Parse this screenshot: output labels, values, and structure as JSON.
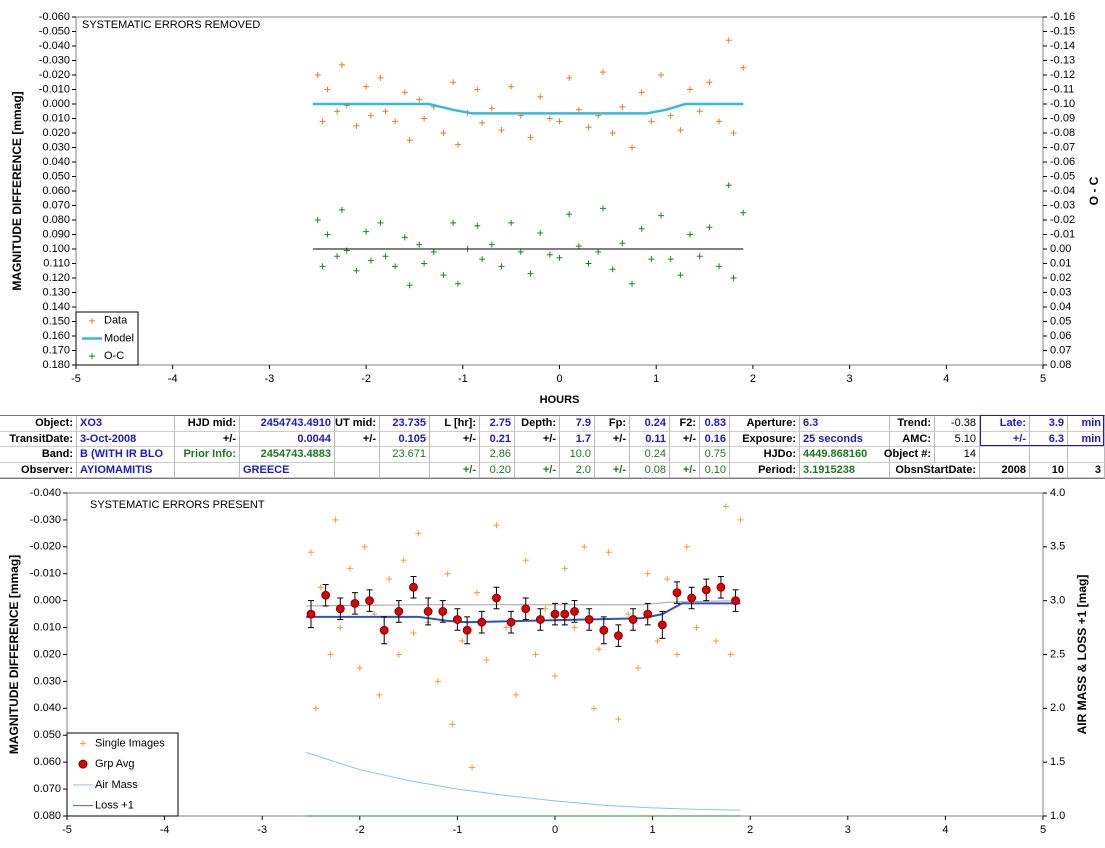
{
  "chart_data": [
    {
      "type": "scatter",
      "title": "SYSTEMATIC ERRORS REMOVED",
      "xlabel": "HOURS",
      "ylabel": "MAGNITUDE DIFFERENCE [mmag]",
      "y2label": "O - C",
      "xlim": [
        -5,
        5
      ],
      "xticks": [
        -5,
        -4,
        -3,
        -2,
        -1,
        0,
        1,
        2,
        3,
        4,
        5
      ],
      "ylim": [
        0.18,
        -0.06
      ],
      "yticks": [
        {
          "value": -0.06,
          "label": "-0.060"
        },
        {
          "value": -0.05,
          "label": "-0.050"
        },
        {
          "value": -0.04,
          "label": "-0.040"
        },
        {
          "value": -0.03,
          "label": "-0.030"
        },
        {
          "value": -0.02,
          "label": "-0.020"
        },
        {
          "value": -0.01,
          "label": "-0.010"
        },
        {
          "value": 0,
          "label": "0.000"
        },
        {
          "value": 0.01,
          "label": "0.010"
        },
        {
          "value": 0.02,
          "label": "0.020"
        },
        {
          "value": 0.03,
          "label": "0.030"
        },
        {
          "value": 0.04,
          "label": "0.040"
        },
        {
          "value": 0.05,
          "label": "0.050"
        },
        {
          "value": 0.06,
          "label": "0.060"
        },
        {
          "value": 0.07,
          "label": "0.070"
        },
        {
          "value": 0.08,
          "label": "0.080"
        },
        {
          "value": 0.09,
          "label": "0.090"
        },
        {
          "value": 0.1,
          "label": "0.100"
        },
        {
          "value": 0.11,
          "label": "0.110"
        },
        {
          "value": 0.12,
          "label": "0.120"
        },
        {
          "value": 0.13,
          "label": "0.130"
        },
        {
          "value": 0.14,
          "label": "0.140"
        },
        {
          "value": 0.15,
          "label": "0.150"
        },
        {
          "value": 0.16,
          "label": "0.160"
        },
        {
          "value": 0.17,
          "label": "0.170"
        },
        {
          "value": 0.18,
          "label": "0.180"
        }
      ],
      "y2lim": [
        0.08,
        -0.16
      ],
      "y2ticks": [
        -0.16,
        -0.15,
        -0.14,
        -0.13,
        -0.12,
        -0.11,
        {
          "value": -0.1,
          "label": "-0.10"
        },
        -0.09,
        -0.08,
        -0.07,
        -0.06,
        -0.05,
        -0.04,
        -0.03,
        -0.02,
        -0.01,
        {
          "value": 0,
          "label": "0.00"
        },
        0.01,
        0.02,
        0.03,
        0.04,
        0.05,
        0.06,
        0.07,
        0.08
      ],
      "legend": "lower left",
      "series": [
        {
          "name": "Data",
          "color": "#ec7c22",
          "marker": "plus",
          "x": [
            -2.5,
            -2.45,
            -2.4,
            -2.3,
            -2.25,
            -2.2,
            -2.1,
            -2.0,
            -1.95,
            -1.85,
            -1.8,
            -1.7,
            -1.6,
            -1.55,
            -1.45,
            -1.4,
            -1.3,
            -1.2,
            -1.1,
            -1.05,
            -0.95,
            -0.85,
            -0.8,
            -0.7,
            -0.6,
            -0.5,
            -0.4,
            -0.3,
            -0.2,
            -0.1,
            0.0,
            0.1,
            0.2,
            0.3,
            0.4,
            0.45,
            0.55,
            0.65,
            0.75,
            0.85,
            0.95,
            1.05,
            1.15,
            1.25,
            1.35,
            1.45,
            1.55,
            1.65,
            1.75,
            1.8,
            1.9
          ],
          "values": [
            -0.02,
            0.012,
            -0.01,
            0.005,
            -0.027,
            0.001,
            0.015,
            -0.012,
            0.008,
            -0.018,
            0.005,
            0.012,
            -0.008,
            0.025,
            -0.003,
            0.01,
            0.002,
            0.02,
            -0.015,
            0.028,
            0.006,
            -0.01,
            0.013,
            0.003,
            0.018,
            -0.012,
            0.008,
            0.023,
            -0.005,
            0.01,
            0.012,
            -0.018,
            0.004,
            0.016,
            0.008,
            -0.022,
            0.02,
            0.002,
            0.03,
            -0.008,
            0.012,
            -0.02,
            0.008,
            0.018,
            -0.01,
            0.005,
            -0.015,
            0.012,
            -0.044,
            0.02,
            -0.025
          ]
        },
        {
          "name": "Model",
          "color": "#33bbdd",
          "marker": "line",
          "width": 2.5,
          "x": [
            -2.55,
            -1.35,
            -1.1,
            -0.9,
            0.9,
            1.1,
            1.3,
            1.9
          ],
          "values": [
            0,
            0,
            0.004,
            0.0065,
            0.0065,
            0.004,
            0,
            0
          ]
        },
        {
          "name": "O-C",
          "color": "#1a8a1a",
          "marker": "plus",
          "axis": "y2",
          "x": [
            -2.5,
            -2.45,
            -2.4,
            -2.3,
            -2.25,
            -2.2,
            -2.1,
            -2.0,
            -1.95,
            -1.85,
            -1.8,
            -1.7,
            -1.6,
            -1.55,
            -1.45,
            -1.4,
            -1.3,
            -1.2,
            -1.1,
            -1.05,
            -0.95,
            -0.85,
            -0.8,
            -0.7,
            -0.6,
            -0.5,
            -0.4,
            -0.3,
            -0.2,
            -0.1,
            0.0,
            0.1,
            0.2,
            0.3,
            0.4,
            0.45,
            0.55,
            0.65,
            0.75,
            0.85,
            0.95,
            1.05,
            1.15,
            1.25,
            1.35,
            1.45,
            1.55,
            1.65,
            1.75,
            1.8,
            1.9
          ],
          "values": [
            -0.02,
            0.012,
            -0.01,
            0.005,
            -0.027,
            0.001,
            0.015,
            -0.012,
            0.008,
            -0.018,
            0.005,
            0.012,
            -0.008,
            0.025,
            -0.003,
            0.01,
            0.002,
            0.018,
            -0.018,
            0.024,
            0.0,
            -0.016,
            0.007,
            -0.003,
            0.012,
            -0.018,
            0.002,
            0.017,
            -0.011,
            0.004,
            0.006,
            -0.024,
            -0.002,
            0.01,
            0.002,
            -0.028,
            0.014,
            -0.004,
            0.024,
            -0.014,
            0.007,
            -0.023,
            0.007,
            0.018,
            -0.01,
            0.005,
            -0.015,
            0.012,
            -0.044,
            0.02,
            -0.025
          ]
        },
        {
          "color": "#000000",
          "marker": "line",
          "axis": "y2",
          "width": 1,
          "x": [
            -2.55,
            1.9
          ],
          "values": [
            0,
            0
          ]
        }
      ]
    },
    {
      "type": "scatter",
      "title": "SYSTEMATIC ERRORS PRESENT",
      "ylabel": "MAGNITUDE DIFFERENCE [mmag]",
      "y2label": "AIR MASS & LOSS +1 [mag]",
      "xlim": [
        -5,
        5
      ],
      "xticks": [
        -5,
        -4,
        -3,
        -2,
        -1,
        0,
        1,
        2,
        3,
        4,
        5
      ],
      "ylim": [
        0.08,
        -0.04
      ],
      "yticks": [
        {
          "value": -0.04,
          "label": "-0.040"
        },
        {
          "value": -0.03,
          "label": "-0.030"
        },
        {
          "value": -0.02,
          "label": "-0.020"
        },
        {
          "value": -0.01,
          "label": "-0.010"
        },
        {
          "value": 0,
          "label": "0.000"
        },
        {
          "value": 0.01,
          "label": "0.010"
        },
        {
          "value": 0.02,
          "label": "0.020"
        },
        {
          "value": 0.03,
          "label": "0.030"
        },
        {
          "value": 0.04,
          "label": "0.040"
        },
        {
          "value": 0.05,
          "label": "0.050"
        },
        {
          "value": 0.06,
          "label": "0.060"
        },
        {
          "value": 0.07,
          "label": "0.070"
        },
        {
          "value": 0.08,
          "label": "0.080"
        }
      ],
      "y2lim": [
        1.0,
        4.0
      ],
      "y2ticks": [
        {
          "value": 1,
          "label": "1.0"
        },
        1.5,
        {
          "value": 2,
          "label": "2.0"
        },
        2.5,
        {
          "value": 3,
          "label": "3.0"
        },
        3.5,
        {
          "value": 4,
          "label": "4.0"
        }
      ],
      "legend": "lower left",
      "series": [
        {
          "name": "Single Images",
          "color": "#f0a030",
          "marker": "plus",
          "x": [
            -2.5,
            -2.45,
            -2.4,
            -2.3,
            -2.25,
            -2.2,
            -2.1,
            -2.0,
            -1.95,
            -1.85,
            -1.8,
            -1.7,
            -1.6,
            -1.55,
            -1.45,
            -1.4,
            -1.3,
            -1.2,
            -1.1,
            -1.05,
            -0.95,
            -0.85,
            -0.8,
            -0.7,
            -0.6,
            -0.5,
            -0.4,
            -0.3,
            -0.2,
            -0.1,
            0.0,
            0.1,
            0.2,
            0.3,
            0.4,
            0.45,
            0.55,
            0.65,
            0.75,
            0.85,
            0.95,
            1.05,
            1.15,
            1.25,
            1.35,
            1.45,
            1.55,
            1.65,
            1.75,
            1.8,
            1.9
          ],
          "values": [
            -0.018,
            0.04,
            -0.005,
            0.02,
            -0.03,
            0.01,
            -0.012,
            0.025,
            -0.02,
            0.005,
            0.035,
            -0.008,
            0.02,
            -0.015,
            0.012,
            -0.025,
            0.008,
            0.03,
            -0.01,
            0.046,
            0.015,
            0.062,
            -0.003,
            0.022,
            -0.028,
            0.01,
            0.035,
            -0.015,
            0.02,
            0.003,
            0.028,
            -0.012,
            0.01,
            -0.02,
            0.04,
            0.018,
            -0.018,
            0.044,
            0.005,
            0.025,
            -0.01,
            0.015,
            -0.008,
            0.02,
            -0.02,
            0.01,
            -0.003,
            0.015,
            -0.035,
            0.02,
            -0.03
          ]
        },
        {
          "color": "#a0a0a0",
          "marker": "line",
          "width": 1,
          "x": [
            -2.55,
            -1.4,
            -1.1,
            0.9,
            1.2,
            1.9
          ],
          "values": [
            0.002,
            0.0015,
            0.0015,
            0.0015,
            0.0005,
            0.0
          ]
        },
        {
          "color": "#3050c0",
          "marker": "line",
          "width": 2,
          "x": [
            -2.55,
            -1.4,
            -1.1,
            -0.9,
            0.9,
            1.1,
            1.3,
            1.9
          ],
          "values": [
            0.006,
            0.006,
            0.0075,
            0.008,
            0.0065,
            0.005,
            0.001,
            0.001
          ]
        },
        {
          "name": "Grp Avg",
          "color": "#e00000",
          "marker": "circle",
          "x": [
            -2.5,
            -2.35,
            -2.2,
            -2.05,
            -1.9,
            -1.75,
            -1.6,
            -1.45,
            -1.3,
            -1.15,
            -1.0,
            -0.9,
            -0.75,
            -0.6,
            -0.45,
            -0.3,
            -0.15,
            0.0,
            0.1,
            0.2,
            0.35,
            0.5,
            0.65,
            0.8,
            0.95,
            1.1,
            1.25,
            1.4,
            1.55,
            1.7,
            1.85
          ],
          "values": [
            0.005,
            -0.002,
            0.003,
            0.001,
            0.0,
            0.011,
            0.004,
            -0.005,
            0.004,
            0.004,
            0.007,
            0.011,
            0.008,
            -0.001,
            0.008,
            0.003,
            0.007,
            0.005,
            0.005,
            0.004,
            0.007,
            0.011,
            0.013,
            0.007,
            0.005,
            0.009,
            -0.003,
            -0.001,
            -0.004,
            -0.005,
            0.0
          ],
          "errors": [
            0.005,
            0.004,
            0.004,
            0.004,
            0.004,
            0.005,
            0.004,
            0.004,
            0.005,
            0.004,
            0.004,
            0.005,
            0.004,
            0.004,
            0.004,
            0.004,
            0.004,
            0.004,
            0.004,
            0.004,
            0.004,
            0.005,
            0.004,
            0.004,
            0.004,
            0.005,
            0.004,
            0.004,
            0.004,
            0.004,
            0.004
          ]
        },
        {
          "name": "Air Mass",
          "color": "#88c4ec",
          "marker": "line",
          "axis": "y2",
          "width": 1,
          "x": [
            -2.55,
            -2,
            -1.5,
            -1,
            -0.5,
            0,
            0.5,
            1,
            1.5,
            1.9
          ],
          "values": [
            1.59,
            1.43,
            1.33,
            1.25,
            1.19,
            1.14,
            1.1,
            1.075,
            1.06,
            1.055
          ]
        },
        {
          "name": "Loss +1",
          "color": "#2a8a2a",
          "marker": "line",
          "axis": "y2",
          "width": 1,
          "x": [
            -2.55,
            1.9
          ],
          "values": [
            1.0,
            1.0
          ]
        }
      ]
    }
  ],
  "table": {
    "rows": [
      [
        "Object:",
        "XO3",
        "HJD mid:",
        "2454743.4910",
        "UT mid:",
        "23.735",
        "L [hr]:",
        "2.75",
        "Depth:",
        "7.9",
        "Fp:",
        "0.24",
        "F2:",
        "0.83",
        "Aperture:",
        "6.3",
        "Trend:",
        "-0.38",
        "Late:",
        "3.9",
        "min"
      ],
      [
        "TransitDate:",
        "3-Oct-2008",
        "+/-",
        "0.0044",
        "+/-",
        "0.105",
        "+/-",
        "0.21",
        "+/-",
        "1.7",
        "+/-",
        "0.11",
        "+/-",
        "0.16",
        "Exposure:",
        "25 seconds",
        "AMC:",
        "5.10",
        "+/-",
        "6.3",
        "min"
      ],
      [
        "Band:",
        "B (WITH IR BLO",
        "Prior Info:",
        "2454743.4883",
        null,
        "23.671",
        null,
        "2.86",
        null,
        "10.0",
        null,
        "0.24",
        null,
        "0.75",
        "HJDo:",
        "4449.868160",
        "Object #:",
        "14",
        null,
        null,
        null
      ],
      [
        "Observer:",
        "AYIOMAMITIS",
        null,
        "GREECE",
        null,
        null,
        "+/-",
        "0.20",
        "+/-",
        "2.0",
        "+/-",
        "0.08",
        "+/-",
        "0.10",
        "Period:",
        "3.1915238",
        "ObsnStartDate:",
        null,
        "2008",
        "10",
        "3"
      ]
    ]
  }
}
